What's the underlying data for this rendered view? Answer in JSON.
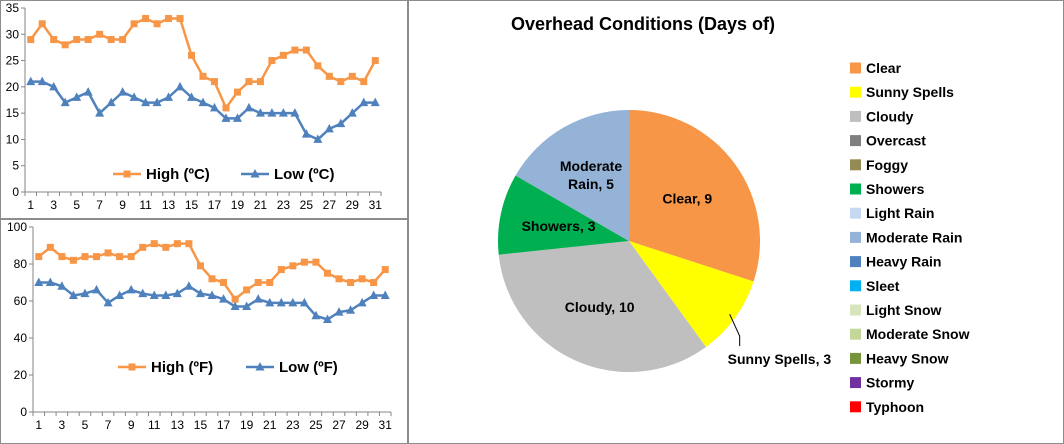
{
  "chart_data": [
    {
      "type": "line",
      "id": "celsius",
      "title": "",
      "categories": [
        1,
        2,
        3,
        4,
        5,
        6,
        7,
        8,
        9,
        10,
        11,
        12,
        13,
        14,
        15,
        16,
        17,
        18,
        19,
        20,
        21,
        22,
        23,
        24,
        25,
        26,
        27,
        28,
        29,
        30,
        31
      ],
      "x_tick_labels": [
        "1",
        "3",
        "5",
        "7",
        "9",
        "11",
        "13",
        "15",
        "17",
        "19",
        "21",
        "23",
        "25",
        "27",
        "29",
        "31"
      ],
      "ylim": [
        0,
        35
      ],
      "y_ticks": [
        0,
        5,
        10,
        15,
        20,
        25,
        30,
        35
      ],
      "series": [
        {
          "name": "High (ºC)",
          "color": "#f79646",
          "marker": "square",
          "values": [
            29,
            32,
            29,
            28,
            29,
            29,
            30,
            29,
            29,
            32,
            33,
            32,
            33,
            33,
            26,
            22,
            21,
            16,
            19,
            21,
            21,
            25,
            26,
            27,
            27,
            24,
            22,
            21,
            22,
            21,
            25
          ]
        },
        {
          "name": "Low (ºC)",
          "color": "#4f81bd",
          "marker": "triangle",
          "values": [
            21,
            21,
            20,
            17,
            18,
            19,
            15,
            17,
            19,
            18,
            17,
            17,
            18,
            20,
            18,
            17,
            16,
            14,
            14,
            16,
            15,
            15,
            15,
            15,
            11,
            10,
            12,
            13,
            15,
            17,
            17
          ]
        }
      ]
    },
    {
      "type": "line",
      "id": "fahrenheit",
      "title": "",
      "categories": [
        1,
        2,
        3,
        4,
        5,
        6,
        7,
        8,
        9,
        10,
        11,
        12,
        13,
        14,
        15,
        16,
        17,
        18,
        19,
        20,
        21,
        22,
        23,
        24,
        25,
        26,
        27,
        28,
        29,
        30,
        31
      ],
      "x_tick_labels": [
        "1",
        "3",
        "5",
        "7",
        "9",
        "11",
        "13",
        "15",
        "17",
        "19",
        "21",
        "23",
        "25",
        "27",
        "29",
        "31"
      ],
      "ylim": [
        0,
        100
      ],
      "y_ticks": [
        0,
        20,
        40,
        60,
        80,
        100
      ],
      "series": [
        {
          "name": "High (ºF)",
          "color": "#f79646",
          "marker": "square",
          "values": [
            84,
            89,
            84,
            82,
            84,
            84,
            86,
            84,
            84,
            89,
            91,
            89,
            91,
            91,
            79,
            72,
            70,
            61,
            66,
            70,
            70,
            77,
            79,
            81,
            81,
            75,
            72,
            70,
            72,
            70,
            77
          ]
        },
        {
          "name": "Low (ºF)",
          "color": "#4f81bd",
          "marker": "triangle",
          "values": [
            70,
            70,
            68,
            63,
            64,
            66,
            59,
            63,
            66,
            64,
            63,
            63,
            64,
            68,
            64,
            63,
            61,
            57,
            57,
            61,
            59,
            59,
            59,
            59,
            52,
            50,
            54,
            55,
            59,
            63,
            63
          ]
        }
      ]
    },
    {
      "type": "pie",
      "id": "overhead",
      "title": "Overhead Conditions (Days of)",
      "slices": [
        {
          "label": "Clear",
          "value": 9,
          "display": "Clear, 9",
          "color": "#f79646"
        },
        {
          "label": "Sunny Spells",
          "value": 3,
          "display": "Sunny Spells, 3",
          "color": "#ffff00"
        },
        {
          "label": "Cloudy",
          "value": 10,
          "display": "Cloudy, 10",
          "color": "#bfbfbf"
        },
        {
          "label": "Showers",
          "value": 3,
          "display": "Showers, 3",
          "color": "#00b050"
        },
        {
          "label": "Moderate Rain",
          "value": 5,
          "display": "Moderate Rain, 5",
          "display_lines": [
            "Moderate",
            "Rain, 5"
          ],
          "color": "#95b3d7"
        }
      ],
      "legend": [
        {
          "label": "Clear",
          "color": "#f79646"
        },
        {
          "label": "Sunny Spells",
          "color": "#ffff00"
        },
        {
          "label": "Cloudy",
          "color": "#bfbfbf"
        },
        {
          "label": "Overcast",
          "color": "#7f7f7f"
        },
        {
          "label": "Foggy",
          "color": "#948a54"
        },
        {
          "label": "Showers",
          "color": "#00b050"
        },
        {
          "label": "Light Rain",
          "color": "#c6d9f1"
        },
        {
          "label": "Moderate Rain",
          "color": "#95b3d7"
        },
        {
          "label": "Heavy Rain",
          "color": "#4f81bd"
        },
        {
          "label": "Sleet",
          "color": "#00b0f0"
        },
        {
          "label": "Light Snow",
          "color": "#d8e4bc"
        },
        {
          "label": "Moderate Snow",
          "color": "#c4d79b"
        },
        {
          "label": "Heavy Snow",
          "color": "#77933c"
        },
        {
          "label": "Stormy",
          "color": "#7030a0"
        },
        {
          "label": "Typhoon",
          "color": "#ff0000"
        }
      ]
    }
  ]
}
